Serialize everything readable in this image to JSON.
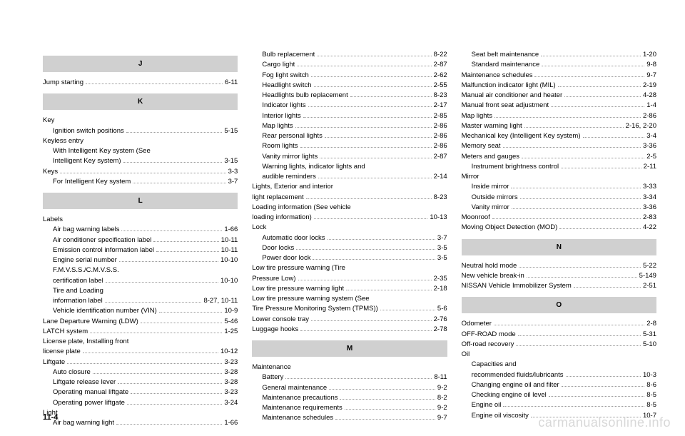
{
  "pageNumber": "11-4",
  "watermark": "carmanualsonline.info",
  "columns": [
    {
      "groups": [
        {
          "type": "header",
          "text": "J"
        },
        {
          "type": "entry",
          "label": "Jump starting",
          "page": "6-11"
        },
        {
          "type": "header",
          "text": "K"
        },
        {
          "type": "entry",
          "label": "Key",
          "noPage": true
        },
        {
          "type": "entry",
          "label": "Ignition switch positions",
          "page": "5-15",
          "indent": true
        },
        {
          "type": "entry",
          "label": "Keyless entry",
          "noPage": true
        },
        {
          "type": "entry",
          "label": "With Intelligent Key system (See",
          "noPage": true,
          "indent": true
        },
        {
          "type": "entry",
          "label": "Intelligent Key system)",
          "page": "3-15",
          "indent": true
        },
        {
          "type": "entry",
          "label": "Keys",
          "page": "3-3"
        },
        {
          "type": "entry",
          "label": "For Intelligent Key system",
          "page": "3-7",
          "indent": true
        },
        {
          "type": "header",
          "text": "L"
        },
        {
          "type": "entry",
          "label": "Labels",
          "noPage": true
        },
        {
          "type": "entry",
          "label": "Air bag warning labels",
          "page": "1-66",
          "indent": true
        },
        {
          "type": "entry",
          "label": "Air conditioner specification label",
          "page": "10-11",
          "indent": true
        },
        {
          "type": "entry",
          "label": "Emission control information label",
          "page": "10-11",
          "indent": true
        },
        {
          "type": "entry",
          "label": "Engine serial number",
          "page": "10-10",
          "indent": true
        },
        {
          "type": "entry",
          "label": "F.M.V.S.S./C.M.V.S.S.",
          "noPage": true,
          "indent": true
        },
        {
          "type": "entry",
          "label": "certification label",
          "page": "10-10",
          "indent": true
        },
        {
          "type": "entry",
          "label": "Tire and Loading",
          "noPage": true,
          "indent": true
        },
        {
          "type": "entry",
          "label": "information label",
          "page": "8-27, 10-11",
          "indent": true
        },
        {
          "type": "entry",
          "label": "Vehicle identification number (VIN)",
          "page": "10-9",
          "indent": true
        },
        {
          "type": "entry",
          "label": "Lane Departure Warning (LDW)",
          "page": "5-46"
        },
        {
          "type": "entry",
          "label": "LATCH system",
          "page": "1-25"
        },
        {
          "type": "entry",
          "label": "License plate, Installing front",
          "noPage": true
        },
        {
          "type": "entry",
          "label": "license plate",
          "page": "10-12"
        },
        {
          "type": "entry",
          "label": "Liftgate",
          "page": "3-23"
        },
        {
          "type": "entry",
          "label": "Auto closure",
          "page": "3-28",
          "indent": true
        },
        {
          "type": "entry",
          "label": "Liftgate release lever",
          "page": "3-28",
          "indent": true
        },
        {
          "type": "entry",
          "label": "Operating manual liftgate",
          "page": "3-23",
          "indent": true
        },
        {
          "type": "entry",
          "label": "Operating power liftgate",
          "page": "3-24",
          "indent": true
        },
        {
          "type": "entry",
          "label": "Light",
          "noPage": true
        },
        {
          "type": "entry",
          "label": "Air bag warning light",
          "page": "1-66",
          "indent": true
        }
      ]
    },
    {
      "groups": [
        {
          "type": "entry",
          "label": "Bulb replacement",
          "page": "8-22",
          "indent": true
        },
        {
          "type": "entry",
          "label": "Cargo light",
          "page": "2-87",
          "indent": true
        },
        {
          "type": "entry",
          "label": "Fog light switch",
          "page": "2-62",
          "indent": true
        },
        {
          "type": "entry",
          "label": "Headlight switch",
          "page": "2-55",
          "indent": true
        },
        {
          "type": "entry",
          "label": "Headlights bulb replacement",
          "page": "8-23",
          "indent": true
        },
        {
          "type": "entry",
          "label": "Indicator lights",
          "page": "2-17",
          "indent": true
        },
        {
          "type": "entry",
          "label": "Interior lights",
          "page": "2-85",
          "indent": true
        },
        {
          "type": "entry",
          "label": "Map lights",
          "page": "2-86",
          "indent": true
        },
        {
          "type": "entry",
          "label": "Rear personal lights",
          "page": "2-86",
          "indent": true
        },
        {
          "type": "entry",
          "label": "Room lights",
          "page": "2-86",
          "indent": true
        },
        {
          "type": "entry",
          "label": "Vanity mirror lights",
          "page": "2-87",
          "indent": true
        },
        {
          "type": "entry",
          "label": "Warning lights, indicator lights and",
          "noPage": true,
          "indent": true
        },
        {
          "type": "entry",
          "label": "audible reminders",
          "page": "2-14",
          "indent": true
        },
        {
          "type": "entry",
          "label": "Lights, Exterior and interior",
          "noPage": true
        },
        {
          "type": "entry",
          "label": "light replacement",
          "page": "8-23"
        },
        {
          "type": "entry",
          "label": "Loading information (See vehicle",
          "noPage": true
        },
        {
          "type": "entry",
          "label": "loading information)",
          "page": "10-13"
        },
        {
          "type": "entry",
          "label": "Lock",
          "noPage": true
        },
        {
          "type": "entry",
          "label": "Automatic door locks",
          "page": "3-7",
          "indent": true
        },
        {
          "type": "entry",
          "label": "Door locks",
          "page": "3-5",
          "indent": true
        },
        {
          "type": "entry",
          "label": "Power door lock",
          "page": "3-5",
          "indent": true
        },
        {
          "type": "entry",
          "label": "Low tire pressure warning (Tire",
          "noPage": true
        },
        {
          "type": "entry",
          "label": "Pressure Low)",
          "page": "2-35"
        },
        {
          "type": "entry",
          "label": "Low tire pressure warning light",
          "page": "2-18"
        },
        {
          "type": "entry",
          "label": "Low tire pressure warning system (See",
          "noPage": true
        },
        {
          "type": "entry",
          "label": "Tire Pressure Monitoring System (TPMS))",
          "page": "5-6"
        },
        {
          "type": "entry",
          "label": "Lower console tray",
          "page": "2-76"
        },
        {
          "type": "entry",
          "label": "Luggage hooks",
          "page": "2-78"
        },
        {
          "type": "header",
          "text": "M"
        },
        {
          "type": "entry",
          "label": "Maintenance",
          "noPage": true
        },
        {
          "type": "entry",
          "label": "Battery",
          "page": "8-11",
          "indent": true
        },
        {
          "type": "entry",
          "label": "General maintenance",
          "page": "9-2",
          "indent": true
        },
        {
          "type": "entry",
          "label": "Maintenance precautions",
          "page": "8-2",
          "indent": true
        },
        {
          "type": "entry",
          "label": "Maintenance requirements",
          "page": "9-2",
          "indent": true
        },
        {
          "type": "entry",
          "label": "Maintenance schedules",
          "page": "9-7",
          "indent": true
        }
      ]
    },
    {
      "groups": [
        {
          "type": "entry",
          "label": "Seat belt maintenance",
          "page": "1-20",
          "indent": true
        },
        {
          "type": "entry",
          "label": "Standard maintenance",
          "page": "9-8",
          "indent": true
        },
        {
          "type": "entry",
          "label": "Maintenance schedules",
          "page": "9-7"
        },
        {
          "type": "entry",
          "label": "Malfunction indicator light (MIL)",
          "page": "2-19"
        },
        {
          "type": "entry",
          "label": "Manual air conditioner and heater",
          "page": "4-28"
        },
        {
          "type": "entry",
          "label": "Manual front seat adjustment",
          "page": "1-4"
        },
        {
          "type": "entry",
          "label": "Map lights",
          "page": "2-86"
        },
        {
          "type": "entry",
          "label": "Master warning light",
          "page": "2-16, 2-20"
        },
        {
          "type": "entry",
          "label": "Mechanical key (Intelligent Key system)",
          "page": "3-4"
        },
        {
          "type": "entry",
          "label": "Memory seat",
          "page": "3-36"
        },
        {
          "type": "entry",
          "label": "Meters and gauges",
          "page": "2-5"
        },
        {
          "type": "entry",
          "label": "Instrument brightness control",
          "page": "2-11",
          "indent": true
        },
        {
          "type": "entry",
          "label": "Mirror",
          "noPage": true
        },
        {
          "type": "entry",
          "label": "Inside mirror",
          "page": "3-33",
          "indent": true
        },
        {
          "type": "entry",
          "label": "Outside mirrors",
          "page": "3-34",
          "indent": true
        },
        {
          "type": "entry",
          "label": "Vanity mirror",
          "page": "3-36",
          "indent": true
        },
        {
          "type": "entry",
          "label": "Moonroof",
          "page": "2-83"
        },
        {
          "type": "entry",
          "label": "Moving Object Detection (MOD)",
          "page": "4-22"
        },
        {
          "type": "header",
          "text": "N"
        },
        {
          "type": "entry",
          "label": "Neutral hold mode",
          "page": "5-22"
        },
        {
          "type": "entry",
          "label": "New vehicle break-in",
          "page": "5-149"
        },
        {
          "type": "entry",
          "label": "NISSAN Vehicle Immobilizer System",
          "page": "2-51"
        },
        {
          "type": "header",
          "text": "O"
        },
        {
          "type": "entry",
          "label": "Odometer",
          "page": "2-8"
        },
        {
          "type": "entry",
          "label": "OFF-ROAD mode",
          "page": "5-31"
        },
        {
          "type": "entry",
          "label": "Off-road recovery",
          "page": "5-10"
        },
        {
          "type": "entry",
          "label": "Oil",
          "noPage": true
        },
        {
          "type": "entry",
          "label": "Capacities and",
          "noPage": true,
          "indent": true
        },
        {
          "type": "entry",
          "label": "recommended fluids/lubricants",
          "page": "10-3",
          "indent": true
        },
        {
          "type": "entry",
          "label": "Changing engine oil and filter",
          "page": "8-6",
          "indent": true
        },
        {
          "type": "entry",
          "label": "Checking engine oil level",
          "page": "8-5",
          "indent": true
        },
        {
          "type": "entry",
          "label": "Engine oil",
          "page": "8-5",
          "indent": true
        },
        {
          "type": "entry",
          "label": "Engine oil viscosity",
          "page": "10-7",
          "indent": true
        }
      ]
    }
  ]
}
